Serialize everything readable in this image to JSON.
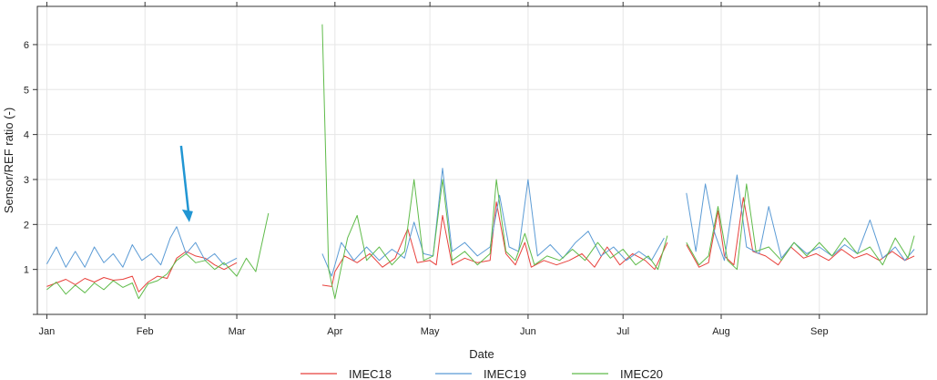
{
  "chart_data": {
    "type": "line",
    "xlabel": "Date",
    "ylabel": "Sensor/REF ratio (-)",
    "x_ticks": [
      {
        "label": "Jan",
        "date": "2020-01-01"
      },
      {
        "label": "Feb",
        "date": "2020-02-01"
      },
      {
        "label": "Mar",
        "date": "2020-03-01"
      },
      {
        "label": "Apr",
        "date": "2020-04-01"
      },
      {
        "label": "May",
        "date": "2020-05-01"
      },
      {
        "label": "Jun",
        "date": "2020-06-01"
      },
      {
        "label": "Jul",
        "date": "2020-07-01"
      },
      {
        "label": "Aug",
        "date": "2020-08-01"
      },
      {
        "label": "Sep",
        "date": "2020-09-01"
      }
    ],
    "y_ticks": [
      1,
      2,
      3,
      4,
      5,
      6
    ],
    "xlim": [
      "2019-12-29",
      "2020-10-05"
    ],
    "ylim": [
      0.0,
      6.85
    ],
    "grid": true,
    "legend_position": "bottom",
    "annotation": {
      "type": "arrow",
      "date": "2020-02-15",
      "from_y": 3.75,
      "to_y": 2.05,
      "color": "#2196d3"
    },
    "series": [
      {
        "name": "IMEC18",
        "color": "#e8413c",
        "points": [
          [
            "2020-01-01",
            0.62
          ],
          [
            "2020-01-04",
            0.7
          ],
          [
            "2020-01-07",
            0.78
          ],
          [
            "2020-01-10",
            0.66
          ],
          [
            "2020-01-13",
            0.8
          ],
          [
            "2020-01-16",
            0.72
          ],
          [
            "2020-01-19",
            0.82
          ],
          [
            "2020-01-22",
            0.76
          ],
          [
            "2020-01-25",
            0.78
          ],
          [
            "2020-01-28",
            0.85
          ],
          [
            "2020-01-30",
            0.5
          ],
          [
            "2020-02-02",
            0.72
          ],
          [
            "2020-02-05",
            0.85
          ],
          [
            "2020-02-08",
            0.8
          ],
          [
            "2020-02-11",
            1.25
          ],
          [
            "2020-02-14",
            1.4
          ],
          [
            "2020-02-17",
            1.3
          ],
          [
            "2020-02-20",
            1.25
          ],
          [
            "2020-02-23",
            1.1
          ],
          [
            "2020-02-26",
            1.0
          ],
          [
            "2020-03-01",
            1.15
          ],
          null,
          [
            "2020-03-28",
            0.65
          ],
          [
            "2020-03-31",
            0.62
          ],
          [
            "2020-04-01",
            0.95
          ],
          [
            "2020-04-04",
            1.3
          ],
          [
            "2020-04-08",
            1.15
          ],
          [
            "2020-04-12",
            1.35
          ],
          [
            "2020-04-16",
            1.05
          ],
          [
            "2020-04-20",
            1.25
          ],
          [
            "2020-04-24",
            1.9
          ],
          [
            "2020-04-27",
            1.15
          ],
          [
            "2020-05-01",
            1.2
          ],
          [
            "2020-05-03",
            1.1
          ],
          [
            "2020-05-05",
            2.2
          ],
          [
            "2020-05-08",
            1.1
          ],
          [
            "2020-05-12",
            1.25
          ],
          [
            "2020-05-16",
            1.15
          ],
          [
            "2020-05-20",
            1.2
          ],
          [
            "2020-05-22",
            2.5
          ],
          [
            "2020-05-25",
            1.35
          ],
          [
            "2020-05-28",
            1.1
          ],
          [
            "2020-05-31",
            1.6
          ],
          [
            "2020-06-02",
            1.05
          ],
          [
            "2020-06-06",
            1.2
          ],
          [
            "2020-06-10",
            1.1
          ],
          [
            "2020-06-14",
            1.2
          ],
          [
            "2020-06-18",
            1.35
          ],
          [
            "2020-06-22",
            1.05
          ],
          [
            "2020-06-26",
            1.5
          ],
          [
            "2020-06-30",
            1.1
          ],
          [
            "2020-07-04",
            1.35
          ],
          [
            "2020-07-08",
            1.2
          ],
          [
            "2020-07-11",
            1.0
          ],
          [
            "2020-07-15",
            1.6
          ],
          null,
          [
            "2020-07-21",
            1.55
          ],
          [
            "2020-07-25",
            1.05
          ],
          [
            "2020-07-28",
            1.15
          ],
          [
            "2020-07-31",
            2.3
          ],
          [
            "2020-08-02",
            1.3
          ],
          [
            "2020-08-05",
            1.1
          ],
          [
            "2020-08-08",
            2.6
          ],
          [
            "2020-08-11",
            1.4
          ],
          [
            "2020-08-15",
            1.3
          ],
          [
            "2020-08-19",
            1.1
          ],
          [
            "2020-08-23",
            1.5
          ],
          [
            "2020-08-27",
            1.25
          ],
          [
            "2020-08-31",
            1.35
          ],
          [
            "2020-09-04",
            1.2
          ],
          [
            "2020-09-08",
            1.45
          ],
          [
            "2020-09-12",
            1.25
          ],
          [
            "2020-09-16",
            1.35
          ],
          [
            "2020-09-20",
            1.2
          ],
          [
            "2020-09-24",
            1.4
          ],
          [
            "2020-09-28",
            1.2
          ],
          [
            "2020-10-01",
            1.3
          ]
        ]
      },
      {
        "name": "IMEC19",
        "color": "#5b9bd5",
        "points": [
          [
            "2020-01-01",
            1.12
          ],
          [
            "2020-01-04",
            1.5
          ],
          [
            "2020-01-07",
            1.05
          ],
          [
            "2020-01-10",
            1.4
          ],
          [
            "2020-01-13",
            1.05
          ],
          [
            "2020-01-16",
            1.5
          ],
          [
            "2020-01-19",
            1.15
          ],
          [
            "2020-01-22",
            1.35
          ],
          [
            "2020-01-25",
            1.05
          ],
          [
            "2020-01-28",
            1.55
          ],
          [
            "2020-01-31",
            1.2
          ],
          [
            "2020-02-03",
            1.35
          ],
          [
            "2020-02-06",
            1.1
          ],
          [
            "2020-02-09",
            1.7
          ],
          [
            "2020-02-11",
            1.95
          ],
          [
            "2020-02-14",
            1.35
          ],
          [
            "2020-02-17",
            1.6
          ],
          [
            "2020-02-20",
            1.2
          ],
          [
            "2020-02-23",
            1.35
          ],
          [
            "2020-02-26",
            1.1
          ],
          [
            "2020-03-01",
            1.25
          ],
          null,
          [
            "2020-03-28",
            1.35
          ],
          [
            "2020-03-31",
            0.85
          ],
          [
            "2020-04-03",
            1.6
          ],
          [
            "2020-04-07",
            1.2
          ],
          [
            "2020-04-11",
            1.5
          ],
          [
            "2020-04-15",
            1.2
          ],
          [
            "2020-04-19",
            1.45
          ],
          [
            "2020-04-23",
            1.25
          ],
          [
            "2020-04-26",
            2.05
          ],
          [
            "2020-04-29",
            1.35
          ],
          [
            "2020-05-02",
            1.3
          ],
          [
            "2020-05-05",
            3.25
          ],
          [
            "2020-05-08",
            1.4
          ],
          [
            "2020-05-12",
            1.6
          ],
          [
            "2020-05-16",
            1.3
          ],
          [
            "2020-05-20",
            1.5
          ],
          [
            "2020-05-23",
            2.65
          ],
          [
            "2020-05-26",
            1.5
          ],
          [
            "2020-05-29",
            1.4
          ],
          [
            "2020-06-01",
            3.0
          ],
          [
            "2020-06-04",
            1.3
          ],
          [
            "2020-06-08",
            1.55
          ],
          [
            "2020-06-12",
            1.25
          ],
          [
            "2020-06-16",
            1.6
          ],
          [
            "2020-06-20",
            1.85
          ],
          [
            "2020-06-24",
            1.3
          ],
          [
            "2020-06-28",
            1.5
          ],
          [
            "2020-07-02",
            1.2
          ],
          [
            "2020-07-06",
            1.4
          ],
          [
            "2020-07-10",
            1.2
          ],
          [
            "2020-07-14",
            1.7
          ],
          null,
          [
            "2020-07-21",
            2.7
          ],
          [
            "2020-07-24",
            1.4
          ],
          [
            "2020-07-27",
            2.9
          ],
          [
            "2020-07-30",
            1.8
          ],
          [
            "2020-08-02",
            1.2
          ],
          [
            "2020-08-06",
            3.1
          ],
          [
            "2020-08-09",
            1.5
          ],
          [
            "2020-08-13",
            1.35
          ],
          [
            "2020-08-16",
            2.4
          ],
          [
            "2020-08-20",
            1.25
          ],
          [
            "2020-08-24",
            1.6
          ],
          [
            "2020-08-28",
            1.35
          ],
          [
            "2020-09-01",
            1.5
          ],
          [
            "2020-09-05",
            1.3
          ],
          [
            "2020-09-09",
            1.55
          ],
          [
            "2020-09-13",
            1.35
          ],
          [
            "2020-09-17",
            2.1
          ],
          [
            "2020-09-21",
            1.25
          ],
          [
            "2020-09-25",
            1.5
          ],
          [
            "2020-09-28",
            1.2
          ],
          [
            "2020-10-01",
            1.45
          ]
        ]
      },
      {
        "name": "IMEC20",
        "color": "#5fbb4a",
        "points": [
          [
            "2020-01-01",
            0.55
          ],
          [
            "2020-01-04",
            0.72
          ],
          [
            "2020-01-07",
            0.45
          ],
          [
            "2020-01-10",
            0.65
          ],
          [
            "2020-01-13",
            0.48
          ],
          [
            "2020-01-16",
            0.7
          ],
          [
            "2020-01-19",
            0.55
          ],
          [
            "2020-01-22",
            0.75
          ],
          [
            "2020-01-25",
            0.6
          ],
          [
            "2020-01-28",
            0.7
          ],
          [
            "2020-01-30",
            0.35
          ],
          [
            "2020-02-02",
            0.68
          ],
          [
            "2020-02-05",
            0.75
          ],
          [
            "2020-02-08",
            0.9
          ],
          [
            "2020-02-11",
            1.2
          ],
          [
            "2020-02-14",
            1.35
          ],
          [
            "2020-02-17",
            1.15
          ],
          [
            "2020-02-20",
            1.2
          ],
          [
            "2020-02-23",
            1.0
          ],
          [
            "2020-02-26",
            1.15
          ],
          [
            "2020-03-01",
            0.85
          ],
          [
            "2020-03-04",
            1.25
          ],
          [
            "2020-03-07",
            0.95
          ],
          [
            "2020-03-11",
            2.25
          ],
          null,
          [
            "2020-03-28",
            6.45
          ],
          [
            "2020-03-30",
            1.0
          ],
          [
            "2020-04-01",
            0.35
          ],
          [
            "2020-04-03",
            1.05
          ],
          [
            "2020-04-05",
            1.7
          ],
          [
            "2020-04-08",
            2.2
          ],
          [
            "2020-04-11",
            1.2
          ],
          [
            "2020-04-15",
            1.5
          ],
          [
            "2020-04-19",
            1.1
          ],
          [
            "2020-04-23",
            1.4
          ],
          [
            "2020-04-26",
            3.0
          ],
          [
            "2020-04-29",
            1.2
          ],
          [
            "2020-05-02",
            1.3
          ],
          [
            "2020-05-05",
            3.0
          ],
          [
            "2020-05-08",
            1.2
          ],
          [
            "2020-05-12",
            1.4
          ],
          [
            "2020-05-16",
            1.1
          ],
          [
            "2020-05-20",
            1.35
          ],
          [
            "2020-05-22",
            3.0
          ],
          [
            "2020-05-25",
            1.4
          ],
          [
            "2020-05-28",
            1.2
          ],
          [
            "2020-05-31",
            1.8
          ],
          [
            "2020-06-03",
            1.1
          ],
          [
            "2020-06-07",
            1.3
          ],
          [
            "2020-06-11",
            1.2
          ],
          [
            "2020-06-15",
            1.45
          ],
          [
            "2020-06-19",
            1.2
          ],
          [
            "2020-06-23",
            1.6
          ],
          [
            "2020-06-27",
            1.25
          ],
          [
            "2020-07-01",
            1.45
          ],
          [
            "2020-07-05",
            1.1
          ],
          [
            "2020-07-09",
            1.3
          ],
          [
            "2020-07-12",
            1.0
          ],
          [
            "2020-07-15",
            1.75
          ],
          null,
          [
            "2020-07-21",
            1.6
          ],
          [
            "2020-07-25",
            1.1
          ],
          [
            "2020-07-28",
            1.3
          ],
          [
            "2020-07-31",
            2.4
          ],
          [
            "2020-08-03",
            1.2
          ],
          [
            "2020-08-06",
            1.0
          ],
          [
            "2020-08-09",
            2.9
          ],
          [
            "2020-08-12",
            1.4
          ],
          [
            "2020-08-16",
            1.5
          ],
          [
            "2020-08-20",
            1.2
          ],
          [
            "2020-08-24",
            1.6
          ],
          [
            "2020-08-28",
            1.3
          ],
          [
            "2020-09-01",
            1.6
          ],
          [
            "2020-09-05",
            1.3
          ],
          [
            "2020-09-09",
            1.7
          ],
          [
            "2020-09-13",
            1.35
          ],
          [
            "2020-09-17",
            1.5
          ],
          [
            "2020-09-21",
            1.1
          ],
          [
            "2020-09-25",
            1.7
          ],
          [
            "2020-09-29",
            1.25
          ],
          [
            "2020-10-01",
            1.75
          ]
        ]
      }
    ]
  }
}
